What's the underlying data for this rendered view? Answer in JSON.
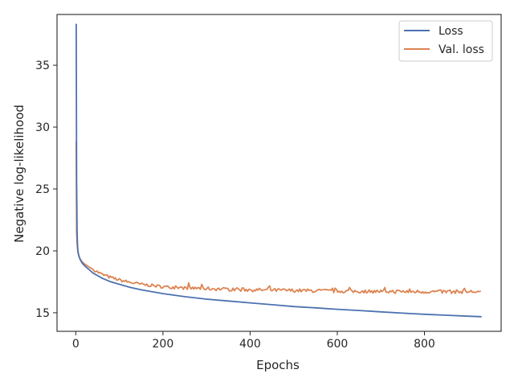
{
  "chart_data": {
    "type": "line",
    "title": "",
    "xlabel": "Epochs",
    "ylabel": "Negative log-likelihood",
    "xlim": [
      -43,
      976
    ],
    "ylim": [
      13.5,
      39.1
    ],
    "xticks": [
      0,
      200,
      400,
      600,
      800
    ],
    "yticks": [
      15,
      20,
      25,
      30,
      35
    ],
    "grid": false,
    "legend_position": "top-right",
    "series": [
      {
        "name": "Loss",
        "color": "#4c72b0",
        "x": [
          1,
          2,
          3,
          4,
          5,
          7,
          10,
          15,
          20,
          30,
          40,
          50,
          60,
          80,
          100,
          125,
          150,
          175,
          200,
          250,
          300,
          350,
          400,
          450,
          500,
          550,
          600,
          650,
          700,
          750,
          800,
          850,
          900,
          930
        ],
        "y": [
          38.3,
          25.5,
          21.5,
          20.5,
          20.0,
          19.6,
          19.3,
          19.0,
          18.8,
          18.5,
          18.2,
          18.0,
          17.8,
          17.5,
          17.3,
          17.05,
          16.85,
          16.7,
          16.55,
          16.3,
          16.1,
          15.95,
          15.8,
          15.65,
          15.5,
          15.4,
          15.28,
          15.18,
          15.07,
          14.97,
          14.88,
          14.8,
          14.72,
          14.68
        ]
      },
      {
        "name": "Val. loss",
        "color": "#dd8452",
        "base_x": [
          1,
          2,
          3,
          4,
          5,
          7,
          10,
          15,
          20,
          30,
          40,
          50,
          60,
          80,
          100,
          125,
          150,
          200,
          250,
          300,
          400,
          500,
          600,
          700,
          800,
          930
        ],
        "base_y": [
          28.8,
          21.5,
          20.6,
          20.2,
          19.9,
          19.6,
          19.35,
          19.1,
          18.95,
          18.7,
          18.5,
          18.3,
          18.1,
          17.85,
          17.65,
          17.45,
          17.3,
          17.1,
          17.0,
          16.95,
          16.85,
          16.8,
          16.75,
          16.72,
          16.7,
          16.7
        ],
        "noise_amplitude": 0.12
      }
    ]
  }
}
